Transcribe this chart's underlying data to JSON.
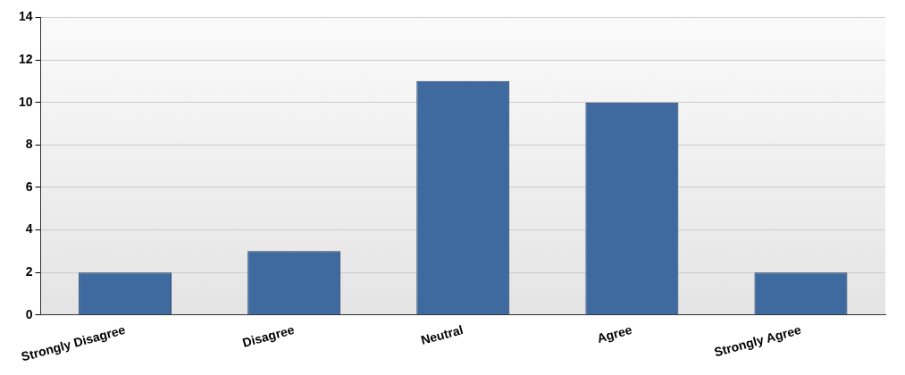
{
  "chart_data": {
    "type": "bar",
    "categories": [
      "Strongly Disagree",
      "Disagree",
      "Neutral",
      "Agree",
      "Strongly Agree"
    ],
    "values": [
      2,
      3,
      11,
      10,
      2
    ],
    "color": "#3f6aa0",
    "ylim": [
      0,
      14
    ],
    "yticks": [
      0,
      2,
      4,
      6,
      8,
      10,
      12,
      14
    ],
    "grid": "y",
    "legend": false
  }
}
